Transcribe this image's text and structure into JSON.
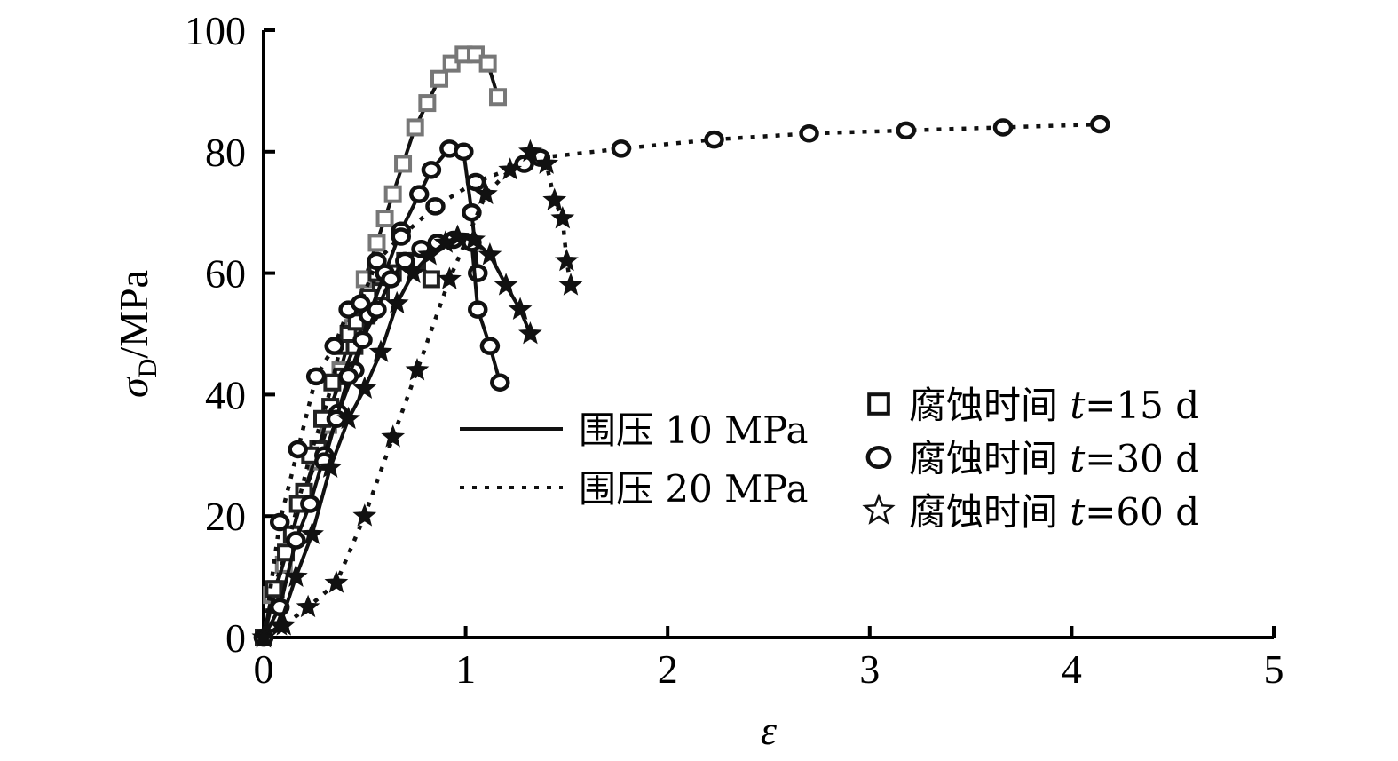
{
  "chart_data": {
    "type": "line",
    "xlabel": "ε",
    "ylabel": {
      "main": "σ",
      "sub": "D",
      "unit": "/MPa"
    },
    "xlim": [
      0,
      5
    ],
    "ylim": [
      0,
      100
    ],
    "xticks": [
      "0",
      "1",
      "2",
      "3",
      "4",
      "5"
    ],
    "yticks": [
      "0",
      "20",
      "40",
      "60",
      "80",
      "100"
    ],
    "grid": false,
    "legend_lines": [
      {
        "label": "围压 10 MPa",
        "style": "solid"
      },
      {
        "label": "围压 20 MPa",
        "style": "dotted"
      }
    ],
    "legend_markers": [
      {
        "marker": "square",
        "label": "腐蚀时间 ",
        "var": "t",
        "value": "=15 d"
      },
      {
        "marker": "circle",
        "label": "腐蚀时间 ",
        "var": "t",
        "value": "=30 d"
      },
      {
        "marker": "star",
        "label": "腐蚀时间 ",
        "var": "t",
        "value": "=60 d"
      }
    ],
    "series": [
      {
        "marker": "square",
        "style": "solid",
        "color": "#777777",
        "x": [
          0,
          0.04,
          0.1,
          0.18,
          0.26,
          0.32,
          0.38,
          0.44,
          0.5,
          0.56,
          0.6,
          0.64,
          0.69,
          0.75,
          0.81,
          0.87,
          0.93,
          0.99,
          1.05,
          1.11,
          1.16
        ],
        "y": [
          0,
          7,
          12,
          22,
          29,
          35,
          44,
          51,
          59,
          65,
          69,
          73,
          78,
          84,
          88,
          92,
          94.5,
          96,
          96,
          94.5,
          89
        ]
      },
      {
        "marker": "square",
        "style": "solid",
        "color": "#222222",
        "x": [
          0,
          0.06,
          0.14,
          0.2,
          0.27,
          0.33,
          0.39,
          0.45,
          0.51,
          0.58,
          0.64,
          0.7,
          0.76,
          0.83
        ],
        "y": [
          0,
          8,
          17,
          24,
          31,
          38,
          43,
          48,
          53,
          57,
          60,
          62,
          62,
          59
        ]
      },
      {
        "marker": "square",
        "style": "dotted",
        "color": "#222222",
        "x": [
          0,
          0.05,
          0.11,
          0.17,
          0.23,
          0.29,
          0.34,
          0.38,
          0.42,
          0.46,
          0.52,
          0.56
        ],
        "y": [
          0,
          8,
          14,
          22,
          30,
          36,
          42,
          48,
          50,
          52,
          56,
          60
        ]
      },
      {
        "marker": "circle",
        "style": "solid",
        "color": "#111111",
        "x": [
          0,
          0.08,
          0.16,
          0.23,
          0.3,
          0.37,
          0.45,
          0.52,
          0.6,
          0.68,
          0.77,
          0.83,
          0.92,
          0.99,
          1.03,
          1.06
        ],
        "y": [
          0,
          5,
          16,
          22,
          30,
          37,
          44,
          53,
          60,
          67,
          73,
          77,
          80.5,
          80,
          70,
          60
        ]
      },
      {
        "marker": "circle",
        "style": "solid",
        "color": "#111111",
        "x": [
          0.3,
          0.36,
          0.42,
          0.49,
          0.56,
          0.63,
          0.7,
          0.78,
          0.86,
          0.94,
          1.03,
          1.06,
          1.12,
          1.17
        ],
        "y": [
          29,
          36,
          43,
          49,
          54,
          59,
          62,
          64,
          65,
          65.5,
          65,
          54,
          48,
          42
        ]
      },
      {
        "marker": "circle",
        "style": "dotted",
        "color": "#111111",
        "x": [
          0,
          0.08,
          0.17,
          0.26,
          0.35,
          0.42,
          0.48,
          0.56,
          0.68,
          0.85,
          1.05,
          1.29,
          1.37,
          1.77,
          2.23,
          2.7,
          3.18,
          3.66,
          4.14
        ],
        "y": [
          0,
          19,
          31,
          43,
          48,
          54,
          55,
          62,
          66,
          71,
          75,
          78,
          79,
          80.5,
          82,
          83,
          83.5,
          84,
          84.5
        ]
      },
      {
        "marker": "star",
        "style": "solid",
        "color": "#111111",
        "x": [
          0,
          0.08,
          0.16,
          0.24,
          0.33,
          0.42,
          0.5,
          0.58,
          0.66,
          0.74,
          0.82,
          0.9,
          0.96,
          1.04,
          1.12,
          1.2,
          1.27,
          1.32
        ],
        "y": [
          0,
          2,
          10,
          17,
          28,
          36,
          41,
          47,
          55,
          60,
          63,
          65,
          66,
          65.5,
          63,
          58,
          54,
          50
        ]
      },
      {
        "marker": "star",
        "style": "dotted",
        "color": "#111111",
        "x": [
          0,
          0.1,
          0.22,
          0.36,
          0.5,
          0.64,
          0.76,
          0.92,
          1.1,
          1.22,
          1.32,
          1.4,
          1.44,
          1.48,
          1.5,
          1.52
        ],
        "y": [
          0,
          2,
          5,
          9,
          20,
          33,
          44,
          59,
          73,
          77,
          80,
          78,
          72,
          69,
          62,
          58
        ]
      }
    ]
  }
}
